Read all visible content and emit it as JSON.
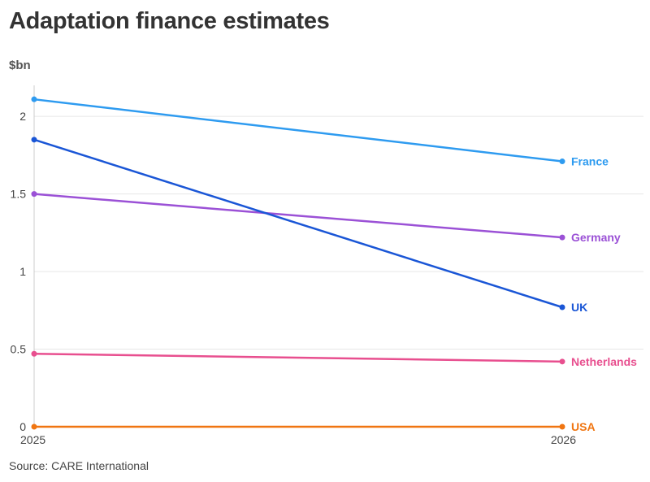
{
  "chart_data": {
    "type": "line",
    "title": "Adaptation finance estimates",
    "ylabel": "$bn",
    "source": "Source: CARE International",
    "x": [
      "2025",
      "2026"
    ],
    "ylim": [
      0,
      2.2
    ],
    "yticks": [
      {
        "value": 0,
        "label": "0"
      },
      {
        "value": 0.5,
        "label": "0.5"
      },
      {
        "value": 1,
        "label": "1"
      },
      {
        "value": 1.5,
        "label": "1.5"
      },
      {
        "value": 2,
        "label": "2"
      }
    ],
    "grid": true,
    "legend": "direct-labels-right",
    "series": [
      {
        "name": "France",
        "values": [
          2.11,
          1.71
        ],
        "color": "#2e9bf0"
      },
      {
        "name": "Germany",
        "values": [
          1.5,
          1.22
        ],
        "color": "#9b51d6"
      },
      {
        "name": "UK",
        "values": [
          1.85,
          0.77
        ],
        "color": "#1a56d6"
      },
      {
        "name": "Netherlands",
        "values": [
          0.47,
          0.42
        ],
        "color": "#e84f8f"
      },
      {
        "name": "USA",
        "values": [
          0.0,
          0.0
        ],
        "color": "#f07511"
      }
    ]
  }
}
